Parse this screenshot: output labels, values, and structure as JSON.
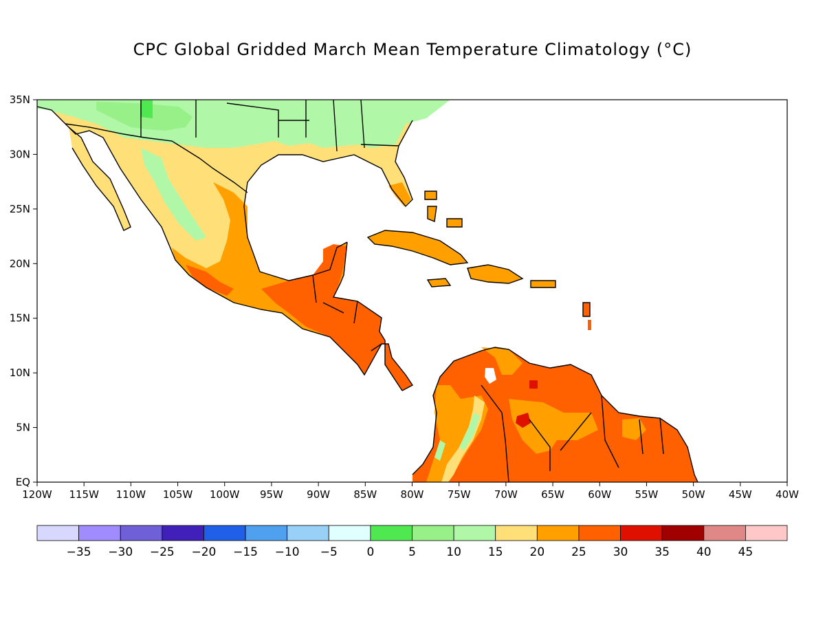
{
  "title": "CPC Global Gridded March Mean Temperature Climatology (°C)",
  "map": {
    "lon_range": [
      -120,
      -40
    ],
    "lat_range": [
      0,
      35
    ],
    "lon_ticks": [
      "120W",
      "115W",
      "110W",
      "105W",
      "100W",
      "95W",
      "90W",
      "85W",
      "80W",
      "75W",
      "70W",
      "65W",
      "60W",
      "55W",
      "50W",
      "45W",
      "40W"
    ],
    "lat_ticks": [
      "EQ",
      "5N",
      "10N",
      "15N",
      "20N",
      "25N",
      "30N",
      "35N"
    ],
    "ocean_color": "#ffffff",
    "coastline_color": "#000000"
  },
  "colorbar": {
    "colors": [
      "#d8d8ff",
      "#a08cff",
      "#7060d8",
      "#4020b8",
      "#2060e8",
      "#50a0f0",
      "#98d0f8",
      "#e0ffff",
      "#50e850",
      "#98f088",
      "#b0f8a8",
      "#ffe078",
      "#ffa000",
      "#ff6000",
      "#e01000",
      "#a00000",
      "#e08888",
      "#ffc8c8"
    ],
    "labels": [
      "-35",
      "-30",
      "-25",
      "-20",
      "-15",
      "-10",
      "-5",
      "0",
      "5",
      "10",
      "15",
      "20",
      "25",
      "30",
      "35",
      "40",
      "45"
    ]
  }
}
